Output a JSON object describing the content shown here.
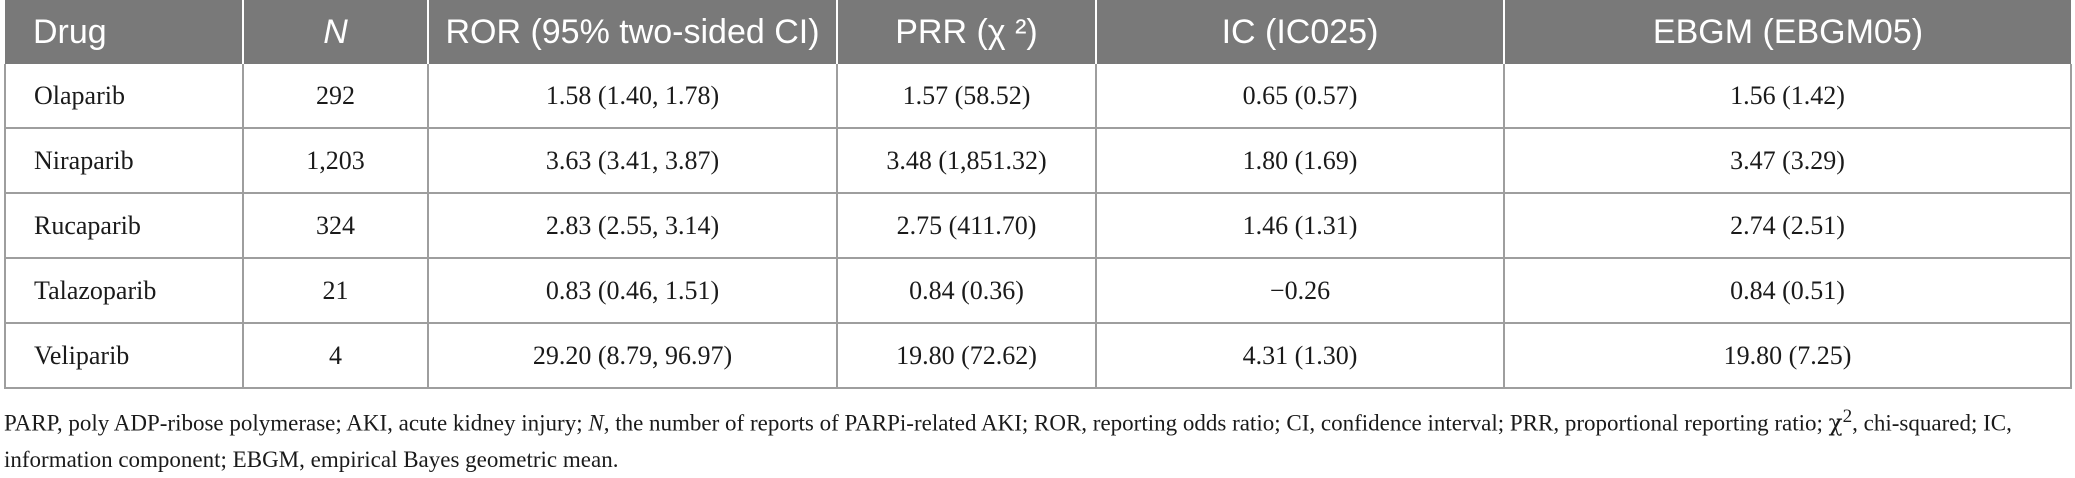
{
  "table": {
    "headers": {
      "drug": "Drug",
      "n": "N",
      "ror": "ROR (95% two-sided CI)",
      "prr": "PRR (χ ²)",
      "ic": "IC (IC025)",
      "ebgm": "EBGM (EBGM05)"
    },
    "rows": [
      {
        "drug": "Olaparib",
        "n": "292",
        "ror": "1.58 (1.40, 1.78)",
        "prr": "1.57 (58.52)",
        "ic": "0.65 (0.57)",
        "ebgm": "1.56 (1.42)"
      },
      {
        "drug": "Niraparib",
        "n": "1,203",
        "ror": "3.63 (3.41, 3.87)",
        "prr": "3.48 (1,851.32)",
        "ic": "1.80 (1.69)",
        "ebgm": "3.47 (3.29)"
      },
      {
        "drug": "Rucaparib",
        "n": "324",
        "ror": "2.83 (2.55, 3.14)",
        "prr": "2.75 (411.70)",
        "ic": "1.46 (1.31)",
        "ebgm": "2.74 (2.51)"
      },
      {
        "drug": "Talazoparib",
        "n": "21",
        "ror": "0.83 (0.46, 1.51)",
        "prr": "0.84 (0.36)",
        "ic": "−0.26",
        "ebgm": "0.84 (0.51)"
      },
      {
        "drug": "Veliparib",
        "n": "4",
        "ror": "29.20 (8.79, 96.97)",
        "prr": "19.80 (72.62)",
        "ic": "4.31 (1.30)",
        "ebgm": "19.80 (7.25)"
      }
    ]
  },
  "footnote": {
    "part1": "PARP, poly ADP-ribose polymerase; AKI, acute kidney injury; ",
    "n_italic": "N",
    "part2": ", the number of reports of PARPi-related AKI; ROR, reporting odds ratio; CI, confidence interval; PRR, proportional reporting ratio; ",
    "chi": "χ",
    "sup": "2",
    "part3": ", chi-squared; IC, information component; EBGM, empirical Bayes geometric mean."
  },
  "colors": {
    "header_bg": "#797979",
    "header_text": "#ffffff",
    "border": "#9e9e9e"
  }
}
